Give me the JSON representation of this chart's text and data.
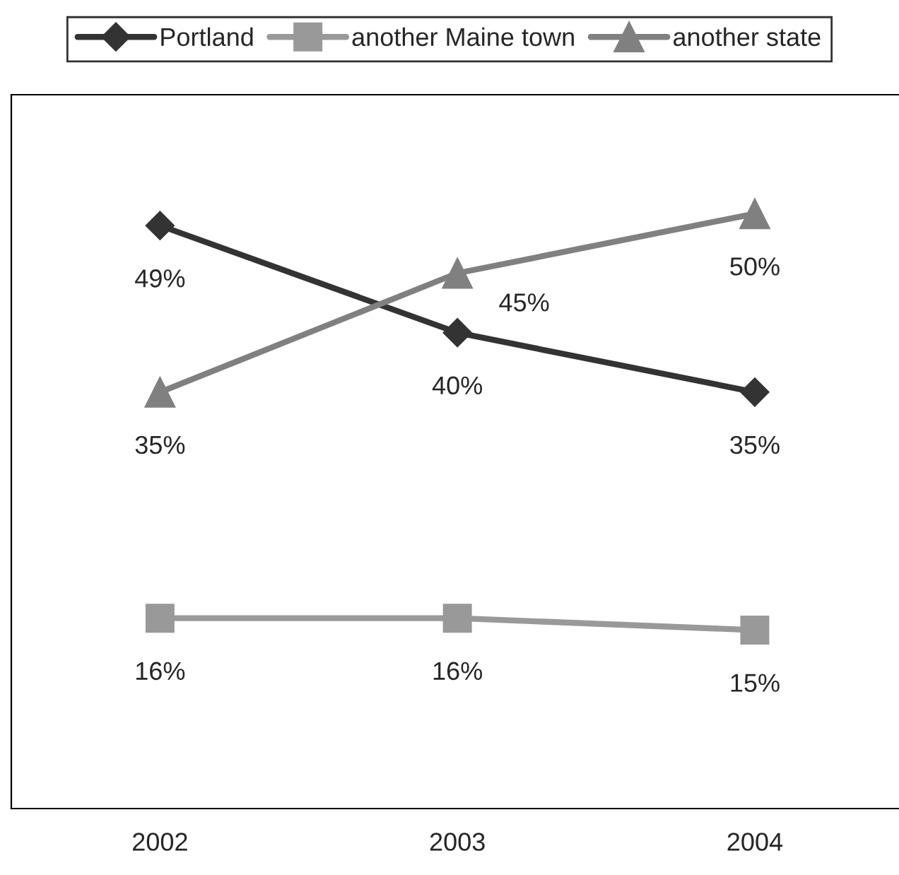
{
  "chart_data": {
    "type": "line",
    "categories": [
      "2002",
      "2003",
      "2004"
    ],
    "series": [
      {
        "name": "Portland",
        "color": "#333333",
        "values": [
          49,
          40,
          35
        ],
        "marker": "diamond",
        "value_labels": [
          "49%",
          "40%",
          "35%"
        ]
      },
      {
        "name": "another Maine town",
        "color": "#999999",
        "values": [
          16,
          16,
          15
        ],
        "marker": "square",
        "value_labels": [
          "16%",
          "16%",
          "15%"
        ]
      },
      {
        "name": "another state",
        "color": "#808080",
        "values": [
          35,
          45,
          50
        ],
        "marker": "triangle",
        "value_labels": [
          "35%",
          "45%",
          "50%"
        ]
      }
    ],
    "ylim": [
      0,
      60
    ],
    "tick_labels": "x",
    "grid": false,
    "legend": "top",
    "line_style": "solid"
  }
}
